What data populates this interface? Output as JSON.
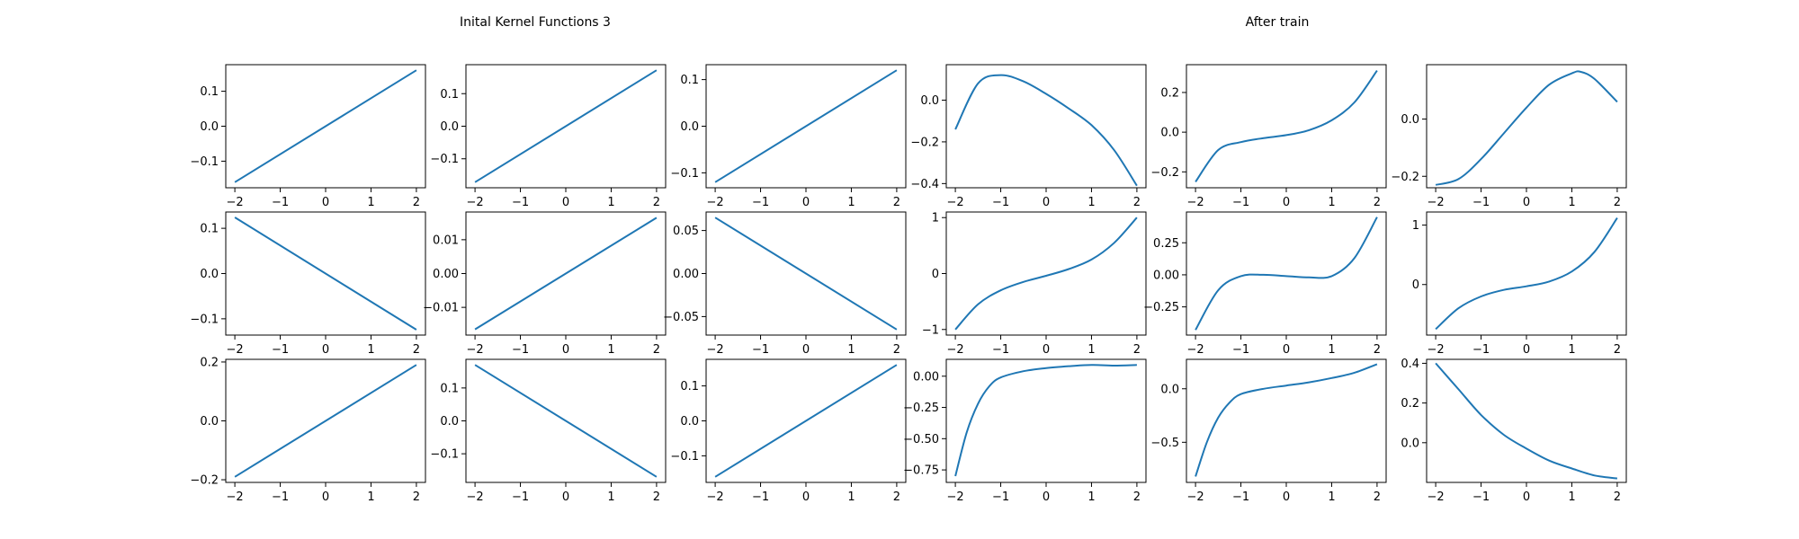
{
  "titles": {
    "left": "Inital Kernel Functions 3",
    "right": "After train"
  },
  "colors": {
    "line": "#1f77b4"
  },
  "chart_data": [
    {
      "type": "line",
      "row": 0,
      "col": 0,
      "x_range": [
        -2,
        2
      ],
      "y_range": [
        -0.16,
        0.16
      ],
      "xlim": [
        -2.2,
        2.2
      ],
      "ylim": [
        -0.176,
        0.176
      ],
      "xticks": [
        -2,
        -1,
        0,
        1,
        2
      ],
      "xtick_labels": [
        "−2",
        "−1",
        "0",
        "1",
        "2"
      ],
      "yticks": [
        -0.1,
        0,
        0.1
      ],
      "ytick_labels": [
        "−0.1",
        "0.0",
        "0.1"
      ]
    },
    {
      "type": "line",
      "row": 0,
      "col": 1,
      "x_range": [
        -2,
        2
      ],
      "y_range": [
        -0.172,
        0.172
      ],
      "xlim": [
        -2.2,
        2.2
      ],
      "ylim": [
        -0.189,
        0.189
      ],
      "xticks": [
        -2,
        -1,
        0,
        1,
        2
      ],
      "xtick_labels": [
        "−2",
        "−1",
        "0",
        "1",
        "2"
      ],
      "yticks": [
        -0.1,
        0,
        0.1
      ],
      "ytick_labels": [
        "−0.1",
        "0.0",
        "0.1"
      ]
    },
    {
      "type": "line",
      "row": 0,
      "col": 2,
      "x_range": [
        -2,
        2
      ],
      "y_range": [
        -0.12,
        0.12
      ],
      "xlim": [
        -2.2,
        2.2
      ],
      "ylim": [
        -0.132,
        0.132
      ],
      "xticks": [
        -2,
        -1,
        0,
        1,
        2
      ],
      "xtick_labels": [
        "−2",
        "−1",
        "0",
        "1",
        "2"
      ],
      "yticks": [
        -0.1,
        0,
        0.1
      ],
      "ytick_labels": [
        "−0.1",
        "0.0",
        "0.1"
      ]
    },
    {
      "type": "line",
      "row": 0,
      "col": 3,
      "x": [
        -2,
        -1.5,
        -1,
        -0.5,
        0,
        0.5,
        1,
        1.5,
        2
      ],
      "y": [
        -0.14,
        0.08,
        0.12,
        0.09,
        0.03,
        -0.04,
        -0.12,
        -0.24,
        -0.41
      ],
      "xlim": [
        -2.2,
        2.2
      ],
      "ylim": [
        -0.42,
        0.17
      ],
      "xticks": [
        -2,
        -1,
        0,
        1,
        2
      ],
      "xtick_labels": [
        "−2",
        "−1",
        "0",
        "1",
        "2"
      ],
      "yticks": [
        -0.4,
        -0.2,
        0
      ],
      "ytick_labels": [
        "−0.4",
        "−0.2",
        "0.0"
      ]
    },
    {
      "type": "line",
      "row": 0,
      "col": 4,
      "x": [
        -2,
        -1.5,
        -1,
        -0.5,
        0,
        0.5,
        1,
        1.5,
        2
      ],
      "y": [
        -0.25,
        -0.09,
        -0.05,
        -0.03,
        -0.015,
        0.01,
        0.06,
        0.15,
        0.31
      ],
      "xlim": [
        -2.2,
        2.2
      ],
      "ylim": [
        -0.28,
        0.34
      ],
      "xticks": [
        -2,
        -1,
        0,
        1,
        2
      ],
      "xtick_labels": [
        "−2",
        "−1",
        "0",
        "1",
        "2"
      ],
      "yticks": [
        -0.2,
        0,
        0.2
      ],
      "ytick_labels": [
        "−0.2",
        "0.0",
        "0.2"
      ]
    },
    {
      "type": "line",
      "row": 0,
      "col": 5,
      "x": [
        -2,
        -1.5,
        -1,
        -0.5,
        0,
        0.5,
        1,
        1.2,
        1.5,
        2
      ],
      "y": [
        -0.23,
        -0.21,
        -0.14,
        -0.05,
        0.04,
        0.12,
        0.16,
        0.165,
        0.14,
        0.06
      ],
      "xlim": [
        -2.2,
        2.2
      ],
      "ylim": [
        -0.24,
        0.19
      ],
      "xticks": [
        -2,
        -1,
        0,
        1,
        2
      ],
      "xtick_labels": [
        "−2",
        "−1",
        "0",
        "1",
        "2"
      ],
      "yticks": [
        -0.2,
        0
      ],
      "ytick_labels": [
        "−0.2",
        "0.0"
      ]
    },
    {
      "type": "line",
      "row": 1,
      "col": 0,
      "x_range": [
        -2,
        2
      ],
      "y_range": [
        0.124,
        -0.124
      ],
      "xlim": [
        -2.2,
        2.2
      ],
      "ylim": [
        -0.136,
        0.136
      ],
      "xticks": [
        -2,
        -1,
        0,
        1,
        2
      ],
      "xtick_labels": [
        "−2",
        "−1",
        "0",
        "1",
        "2"
      ],
      "yticks": [
        -0.1,
        0,
        0.1
      ],
      "ytick_labels": [
        "−0.1",
        "0.0",
        "0.1"
      ]
    },
    {
      "type": "line",
      "row": 1,
      "col": 1,
      "x_range": [
        -2,
        2
      ],
      "y_range": [
        -0.0165,
        0.0165
      ],
      "xlim": [
        -2.2,
        2.2
      ],
      "ylim": [
        -0.0182,
        0.0182
      ],
      "xticks": [
        -2,
        -1,
        0,
        1,
        2
      ],
      "xtick_labels": [
        "−2",
        "−1",
        "0",
        "1",
        "2"
      ],
      "yticks": [
        -0.01,
        0,
        0.01
      ],
      "ytick_labels": [
        "−0.01",
        "0.00",
        "0.01"
      ]
    },
    {
      "type": "line",
      "row": 1,
      "col": 2,
      "x_range": [
        -2,
        2
      ],
      "y_range": [
        0.065,
        -0.065
      ],
      "xlim": [
        -2.2,
        2.2
      ],
      "ylim": [
        -0.0715,
        0.0715
      ],
      "xticks": [
        -2,
        -1,
        0,
        1,
        2
      ],
      "xtick_labels": [
        "−2",
        "−1",
        "0",
        "1",
        "2"
      ],
      "yticks": [
        -0.05,
        0,
        0.05
      ],
      "ytick_labels": [
        "−0.05",
        "0.00",
        "0.05"
      ]
    },
    {
      "type": "line",
      "row": 1,
      "col": 3,
      "x": [
        -2,
        -1.5,
        -1,
        -0.5,
        0,
        0.5,
        1,
        1.5,
        2
      ],
      "y": [
        -1.0,
        -0.55,
        -0.3,
        -0.15,
        -0.04,
        0.08,
        0.25,
        0.55,
        1.0
      ],
      "xlim": [
        -2.2,
        2.2
      ],
      "ylim": [
        -1.1,
        1.1
      ],
      "xticks": [
        -2,
        -1,
        0,
        1,
        2
      ],
      "xtick_labels": [
        "−2",
        "−1",
        "0",
        "1",
        "2"
      ],
      "yticks": [
        -1,
        0,
        1
      ],
      "ytick_labels": [
        "−1",
        "0",
        "1"
      ]
    },
    {
      "type": "line",
      "row": 1,
      "col": 4,
      "x": [
        -2,
        -1.5,
        -1,
        -0.5,
        0,
        0.5,
        1,
        1.5,
        2
      ],
      "y": [
        -0.43,
        -0.12,
        -0.01,
        0.0,
        -0.01,
        -0.02,
        -0.01,
        0.13,
        0.45
      ],
      "xlim": [
        -2.2,
        2.2
      ],
      "ylim": [
        -0.47,
        0.49
      ],
      "xticks": [
        -2,
        -1,
        0,
        1,
        2
      ],
      "xtick_labels": [
        "−2",
        "−1",
        "0",
        "1",
        "2"
      ],
      "yticks": [
        -0.25,
        0,
        0.25
      ],
      "ytick_labels": [
        "−0.25",
        "0.00",
        "0.25"
      ]
    },
    {
      "type": "line",
      "row": 1,
      "col": 5,
      "x": [
        -2,
        -1.5,
        -1,
        -0.5,
        0,
        0.5,
        1,
        1.5,
        2
      ],
      "y": [
        -0.75,
        -0.4,
        -0.2,
        -0.09,
        -0.03,
        0.05,
        0.22,
        0.55,
        1.12
      ],
      "xlim": [
        -2.2,
        2.2
      ],
      "ylim": [
        -0.85,
        1.22
      ],
      "xticks": [
        -2,
        -1,
        0,
        1,
        2
      ],
      "xtick_labels": [
        "−2",
        "−1",
        "0",
        "1",
        "2"
      ],
      "yticks": [
        0,
        1
      ],
      "ytick_labels": [
        "0",
        "1"
      ]
    },
    {
      "type": "line",
      "row": 2,
      "col": 0,
      "x_range": [
        -2,
        2
      ],
      "y_range": [
        -0.19,
        0.19
      ],
      "xlim": [
        -2.2,
        2.2
      ],
      "ylim": [
        -0.209,
        0.209
      ],
      "xticks": [
        -2,
        -1,
        0,
        1,
        2
      ],
      "xtick_labels": [
        "−2",
        "−1",
        "0",
        "1",
        "2"
      ],
      "yticks": [
        -0.2,
        0,
        0.2
      ],
      "ytick_labels": [
        "−0.2",
        "0.0",
        "0.2"
      ]
    },
    {
      "type": "line",
      "row": 2,
      "col": 1,
      "x_range": [
        -2,
        2
      ],
      "y_range": [
        0.17,
        -0.17
      ],
      "xlim": [
        -2.2,
        2.2
      ],
      "ylim": [
        -0.187,
        0.187
      ],
      "xticks": [
        -2,
        -1,
        0,
        1,
        2
      ],
      "xtick_labels": [
        "−2",
        "−1",
        "0",
        "1",
        "2"
      ],
      "yticks": [
        -0.1,
        0,
        0.1
      ],
      "ytick_labels": [
        "−0.1",
        "0.0",
        "0.1"
      ]
    },
    {
      "type": "line",
      "row": 2,
      "col": 2,
      "x_range": [
        -2,
        2
      ],
      "y_range": [
        -0.16,
        0.16
      ],
      "xlim": [
        -2.2,
        2.2
      ],
      "ylim": [
        -0.176,
        0.176
      ],
      "xticks": [
        -2,
        -1,
        0,
        1,
        2
      ],
      "xtick_labels": [
        "−2",
        "−1",
        "0",
        "1",
        "2"
      ],
      "yticks": [
        -0.1,
        0,
        0.1
      ],
      "ytick_labels": [
        "−0.1",
        "0.0",
        "0.1"
      ]
    },
    {
      "type": "line",
      "row": 2,
      "col": 3,
      "x": [
        -2,
        -1.75,
        -1.5,
        -1.25,
        -1,
        -0.5,
        0,
        0.5,
        1,
        1.5,
        2
      ],
      "y": [
        -0.8,
        -0.45,
        -0.22,
        -0.08,
        -0.01,
        0.04,
        0.065,
        0.08,
        0.09,
        0.085,
        0.09
      ],
      "xlim": [
        -2.2,
        2.2
      ],
      "ylim": [
        -0.85,
        0.135
      ],
      "xticks": [
        -2,
        -1,
        0,
        1,
        2
      ],
      "xtick_labels": [
        "−2",
        "−1",
        "0",
        "1",
        "2"
      ],
      "yticks": [
        -0.75,
        -0.5,
        -0.25,
        0
      ],
      "ytick_labels": [
        "−0.75",
        "−0.50",
        "−0.25",
        "0.00"
      ]
    },
    {
      "type": "line",
      "row": 2,
      "col": 4,
      "x": [
        -2,
        -1.75,
        -1.5,
        -1.25,
        -1,
        -0.5,
        0,
        0.5,
        1,
        1.5,
        2
      ],
      "y": [
        -0.82,
        -0.5,
        -0.27,
        -0.13,
        -0.05,
        0.0,
        0.03,
        0.06,
        0.1,
        0.15,
        0.23
      ],
      "xlim": [
        -2.2,
        2.2
      ],
      "ylim": [
        -0.875,
        0.275
      ],
      "xticks": [
        -2,
        -1,
        0,
        1,
        2
      ],
      "xtick_labels": [
        "−2",
        "−1",
        "0",
        "1",
        "2"
      ],
      "yticks": [
        -0.5,
        0
      ],
      "ytick_labels": [
        "−0.5",
        "0.0"
      ]
    },
    {
      "type": "line",
      "row": 2,
      "col": 5,
      "x": [
        -2,
        -1.5,
        -1,
        -0.5,
        0,
        0.5,
        1,
        1.5,
        2
      ],
      "y": [
        0.4,
        0.27,
        0.14,
        0.04,
        -0.03,
        -0.09,
        -0.13,
        -0.165,
        -0.18
      ],
      "xlim": [
        -2.2,
        2.2
      ],
      "ylim": [
        -0.2,
        0.42
      ],
      "xticks": [
        -2,
        -1,
        0,
        1,
        2
      ],
      "xtick_labels": [
        "−2",
        "−1",
        "0",
        "1",
        "2"
      ],
      "yticks": [
        0,
        0.2,
        0.4
      ],
      "ytick_labels": [
        "0.0",
        "0.2",
        "0.4"
      ]
    }
  ]
}
